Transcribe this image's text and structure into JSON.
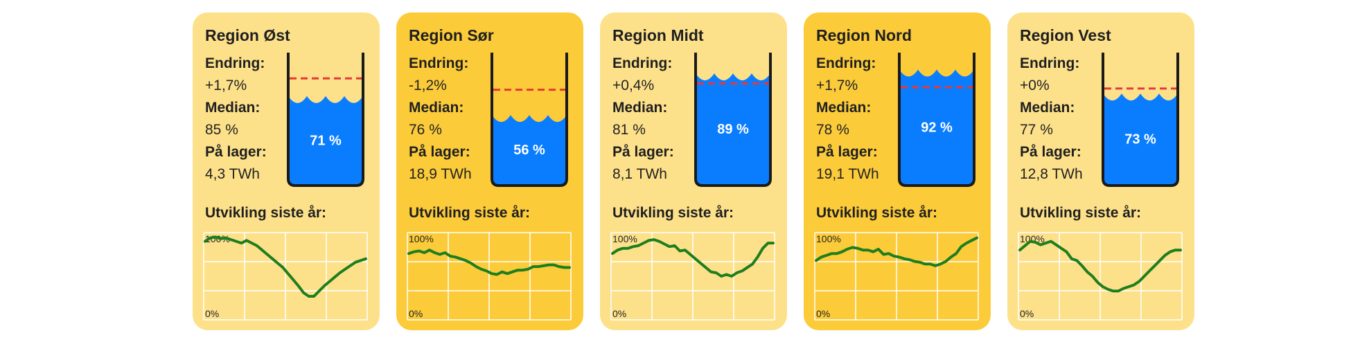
{
  "labels": {
    "change": "Endring:",
    "median": "Median:",
    "stored": "På lager:",
    "development": "Utvikling siste år:",
    "y_top": "100%",
    "y_bottom": "0%"
  },
  "colors": {
    "card_light": "#FDE18A",
    "card_dark": "#FCCB3A",
    "water": "#0A7DFF",
    "median_line": "#E53935",
    "trend_line": "#1E7E1E",
    "grid": "#FFFFFF",
    "tank_outline": "#1A1A1A"
  },
  "chart_data": [
    {
      "type": "gauge",
      "region": "Region Øst",
      "change": "+1,7%",
      "median": "85 %",
      "stored": "4,3 TWh",
      "fill_pct": 71,
      "fill_label": "71 %",
      "median_pct": 85,
      "shade": "light",
      "trend": {
        "type": "line",
        "ylim": [
          0,
          100
        ],
        "values": [
          90,
          94,
          95,
          93,
          94,
          92,
          90,
          88,
          91,
          88,
          85,
          80,
          75,
          70,
          65,
          60,
          53,
          46,
          39,
          31,
          27,
          27,
          33,
          39,
          44,
          49,
          54,
          58,
          62,
          66,
          68,
          70
        ]
      }
    },
    {
      "type": "gauge",
      "region": "Region Sør",
      "change": "-1,2%",
      "median": "76 %",
      "stored": "18,9 TWh",
      "fill_pct": 56,
      "fill_label": "56 %",
      "median_pct": 76,
      "shade": "dark",
      "trend": {
        "type": "line",
        "ylim": [
          0,
          100
        ],
        "values": [
          76,
          78,
          79,
          77,
          80,
          77,
          75,
          77,
          73,
          72,
          70,
          68,
          65,
          61,
          58,
          56,
          53,
          52,
          55,
          53,
          55,
          57,
          57,
          58,
          61,
          61,
          62,
          63,
          63,
          61,
          60,
          60
        ]
      }
    },
    {
      "type": "gauge",
      "region": "Region Midt",
      "change": "+0,4%",
      "median": "81 %",
      "stored": "8,1 TWh",
      "fill_pct": 89,
      "fill_label": "89 %",
      "median_pct": 81,
      "shade": "light",
      "trend": {
        "type": "line",
        "ylim": [
          0,
          100
        ],
        "values": [
          76,
          80,
          82,
          82,
          84,
          85,
          88,
          91,
          92,
          90,
          87,
          84,
          85,
          79,
          80,
          75,
          70,
          65,
          60,
          55,
          54,
          50,
          52,
          50,
          54,
          56,
          60,
          64,
          72,
          82,
          88,
          88
        ]
      }
    },
    {
      "type": "gauge",
      "region": "Region Nord",
      "change": "+1,7%",
      "median": "78 %",
      "stored": "19,1 TWh",
      "fill_pct": 92,
      "fill_label": "92 %",
      "median_pct": 78,
      "shade": "dark",
      "trend": {
        "type": "line",
        "ylim": [
          0,
          100
        ],
        "values": [
          68,
          72,
          74,
          76,
          76,
          78,
          81,
          83,
          82,
          80,
          80,
          78,
          81,
          75,
          76,
          73,
          72,
          70,
          69,
          67,
          66,
          64,
          64,
          62,
          64,
          67,
          72,
          76,
          84,
          88,
          91,
          94
        ]
      }
    },
    {
      "type": "gauge",
      "region": "Region Vest",
      "change": "+0%",
      "median": "77 %",
      "stored": "12,8 TWh",
      "fill_pct": 73,
      "fill_label": "73 %",
      "median_pct": 77,
      "shade": "light",
      "trend": {
        "type": "line",
        "ylim": [
          0,
          100
        ],
        "values": [
          80,
          85,
          90,
          89,
          86,
          88,
          90,
          86,
          82,
          78,
          70,
          68,
          62,
          55,
          50,
          43,
          38,
          35,
          33,
          33,
          36,
          38,
          40,
          44,
          50,
          56,
          62,
          68,
          74,
          78,
          80,
          80
        ]
      }
    }
  ]
}
